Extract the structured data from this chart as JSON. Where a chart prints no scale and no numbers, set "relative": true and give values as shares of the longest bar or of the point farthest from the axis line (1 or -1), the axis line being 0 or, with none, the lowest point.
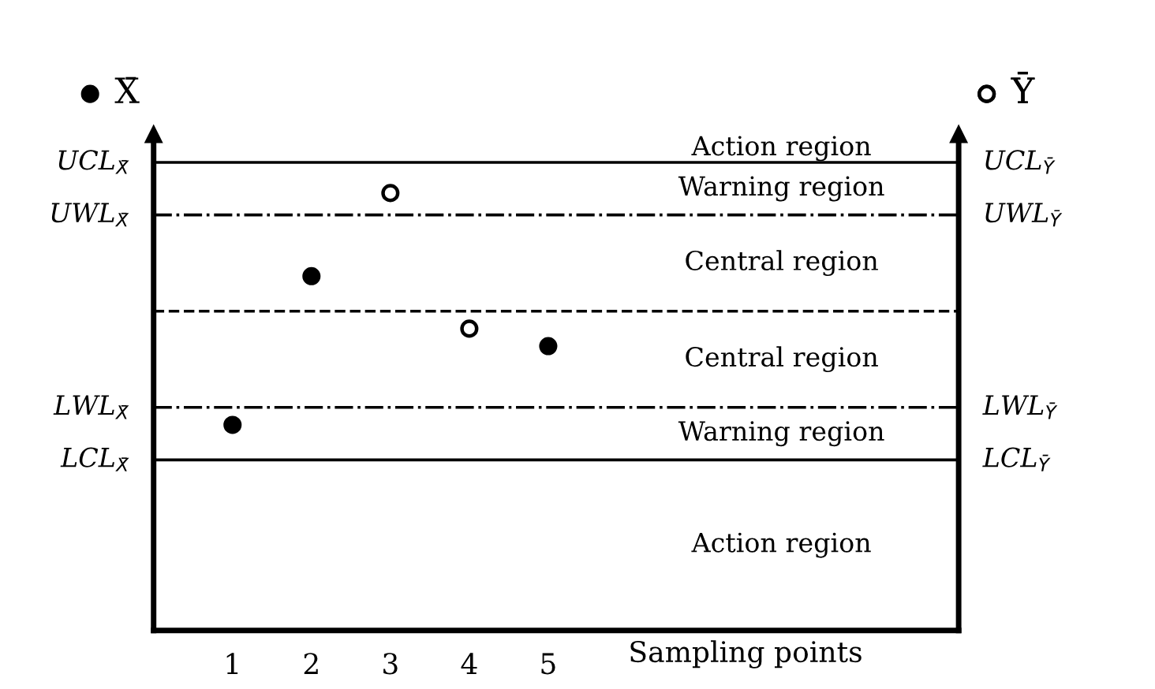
{
  "chart_data": {
    "type": "scatter",
    "relative": true,
    "categories": [
      "1",
      "2",
      "3",
      "4",
      "5"
    ],
    "xlabel": "Sampling points",
    "series": [
      {
        "name": "X̄",
        "color": "#000000",
        "marker": "circle",
        "values": [
          0.47,
          0.81,
          null,
          null,
          0.65
        ]
      },
      {
        "name": "Ȳ",
        "color": "#ffffff",
        "marker": "circle",
        "values": [
          null,
          null,
          1,
          0.69,
          null
        ]
      }
    ],
    "ref_lines": [
      {
        "axis": "y",
        "value": 1.07,
        "label": "UCL$_{X̄}$",
        "line_style": "solid"
      },
      {
        "axis": "y",
        "value": 0.95,
        "label": "UWL$_{X̄}$",
        "line_style": "dashdot"
      },
      {
        "axis": "y",
        "value": 0.73,
        "line_style": "dashed"
      },
      {
        "axis": "y",
        "value": 0.51,
        "label": "LWL$_{X̄}$",
        "line_style": "dashdot"
      },
      {
        "axis": "y",
        "value": 0.39,
        "label": "LCL$_{X̄}$",
        "line_style": "solid"
      }
    ],
    "annotations": [
      "Action region",
      "Warning region",
      "Central region",
      "Central region",
      "Warning region",
      "Action region",
      "UCL$_{Ȳ}$",
      "UWL$_{Ȳ}$",
      "LWL$_{Ȳ}$",
      "LCL$_{Ȳ}$"
    ],
    "legend": "top",
    "grid": false,
    "tick_labels": "x"
  }
}
